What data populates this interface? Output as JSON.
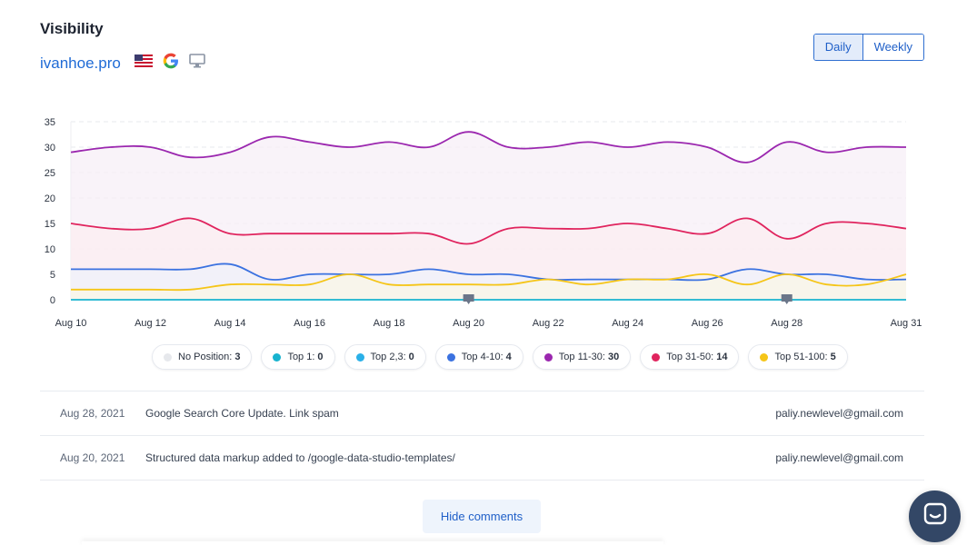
{
  "header": {
    "title": "Visibility",
    "domain": "ivanhoe.pro",
    "icons": [
      "us-flag-icon",
      "google-icon",
      "desktop-icon"
    ]
  },
  "period": {
    "options": [
      "Daily",
      "Weekly"
    ],
    "selected": "Daily"
  },
  "chart_data": {
    "type": "area",
    "y_ticks": [
      "35",
      "30",
      "25",
      "20",
      "15",
      "10",
      "5",
      "0"
    ],
    "ylim": [
      0,
      35
    ],
    "grid": true,
    "x_labels": [
      "Aug 10",
      "Aug 12",
      "Aug 14",
      "Aug 16",
      "Aug 18",
      "Aug 20",
      "Aug 22",
      "Aug 24",
      "Aug 26",
      "Aug 28",
      "Aug 31"
    ],
    "x_dates": [
      "Aug 10",
      "Aug 11",
      "Aug 12",
      "Aug 13",
      "Aug 14",
      "Aug 15",
      "Aug 16",
      "Aug 17",
      "Aug 18",
      "Aug 19",
      "Aug 20",
      "Aug 21",
      "Aug 22",
      "Aug 23",
      "Aug 24",
      "Aug 25",
      "Aug 26",
      "Aug 27",
      "Aug 28",
      "Aug 29",
      "Aug 30",
      "Aug 31"
    ],
    "series": [
      {
        "name": "Top 11-30",
        "color": "#9b27af",
        "fill": "#f7eef7",
        "values": [
          29,
          30,
          30,
          28,
          29,
          32,
          31,
          30,
          31,
          30,
          33,
          30,
          30,
          31,
          30,
          31,
          30,
          27,
          31,
          29,
          30,
          30
        ]
      },
      {
        "name": "Top 31-50",
        "color": "#e0245e",
        "fill": "#fcecf1",
        "values": [
          15,
          14,
          14,
          16,
          13,
          13,
          13,
          13,
          13,
          13,
          11,
          14,
          14,
          14,
          15,
          14,
          13,
          16,
          12,
          15,
          15,
          14
        ]
      },
      {
        "name": "Top 4-10",
        "color": "#3b72e0",
        "fill": "#eef2fb",
        "values": [
          6,
          6,
          6,
          6,
          7,
          4,
          5,
          5,
          5,
          6,
          5,
          5,
          4,
          4,
          4,
          4,
          4,
          6,
          5,
          5,
          4,
          4
        ]
      },
      {
        "name": "Top 51-100",
        "color": "#f5c518",
        "fill": "#fbf6e6",
        "values": [
          2,
          2,
          2,
          2,
          3,
          3,
          3,
          5,
          3,
          3,
          3,
          3,
          4,
          3,
          4,
          4,
          5,
          3,
          5,
          3,
          3,
          5
        ]
      },
      {
        "name": "Top 1",
        "color": "#17b3cf",
        "fill": "none",
        "values": [
          0,
          0,
          0,
          0,
          0,
          0,
          0,
          0,
          0,
          0,
          0,
          0,
          0,
          0,
          0,
          0,
          0,
          0,
          0,
          0,
          0,
          0
        ]
      }
    ],
    "annotation_dates": [
      "Aug 20",
      "Aug 28"
    ]
  },
  "legend": [
    {
      "label": "No Position:",
      "value": "3",
      "color": "#e6e8ec"
    },
    {
      "label": "Top 1:",
      "value": "0",
      "color": "#17b3cf"
    },
    {
      "label": "Top 2,3:",
      "value": "0",
      "color": "#2ab0e8"
    },
    {
      "label": "Top 4-10:",
      "value": "4",
      "color": "#3b72e0"
    },
    {
      "label": "Top 11-30:",
      "value": "30",
      "color": "#9b27af"
    },
    {
      "label": "Top 31-50:",
      "value": "14",
      "color": "#e0245e"
    },
    {
      "label": "Top 51-100:",
      "value": "5",
      "color": "#f5c518"
    }
  ],
  "comments": [
    {
      "date": "Aug 28, 2021",
      "text": "Google Search Core Update. Link spam",
      "author": "paliy.newlevel@gmail.com"
    },
    {
      "date": "Aug 20, 2021",
      "text": "Structured data markup added to /google-data-studio-templates/",
      "author": "paliy.newlevel@gmail.com"
    }
  ],
  "hide_comments_label": "Hide comments",
  "chat_icon": "chat-icon"
}
